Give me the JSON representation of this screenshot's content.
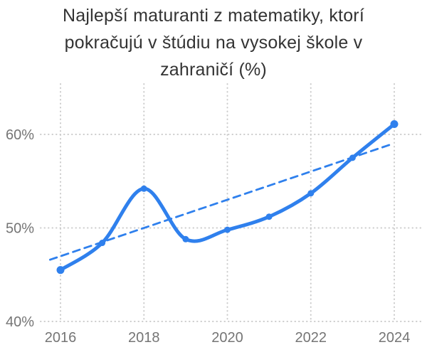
{
  "title_lines": [
    "Najlepší maturanti z matematiky, ktorí",
    "pokračujú v štúdiu na vysokej škole v",
    "zahraničí (%)"
  ],
  "chart_data": {
    "type": "line",
    "title": "Najlepší maturanti z matematiky, ktorí pokračujú v štúdiu na vysokej škole v zahraničí (%)",
    "x": [
      2016,
      2017,
      2018,
      2019,
      2020,
      2021,
      2022,
      2023,
      2024
    ],
    "values": [
      45.5,
      48.4,
      54.2,
      48.8,
      49.8,
      51.2,
      53.7,
      57.5,
      61.1
    ],
    "trendline": {
      "style": "dashed",
      "start": {
        "x": 2015.75,
        "y": 46.6
      },
      "end": {
        "x": 2023.9,
        "y": 58.9
      }
    },
    "x_ticks": [
      {
        "value": 2016,
        "label": "2016"
      },
      {
        "value": 2018,
        "label": "2018"
      },
      {
        "value": 2020,
        "label": "2020"
      },
      {
        "value": 2022,
        "label": "2022"
      },
      {
        "value": 2024,
        "label": "2024"
      }
    ],
    "y_ticks": [
      {
        "value": 60,
        "label": "60%"
      },
      {
        "value": 50,
        "label": "50%"
      },
      {
        "value": 40,
        "label": "40%"
      }
    ],
    "xlim": [
      2015.5,
      2024.65
    ],
    "ylim": [
      40,
      65
    ],
    "grid": "dotted",
    "legend": "none",
    "colors": {
      "line": "#2F80ED",
      "trend": "#2F80ED",
      "grid": "#cccccc",
      "tick_label": "#757575",
      "title": "#333333",
      "background": "#ffffff"
    }
  }
}
